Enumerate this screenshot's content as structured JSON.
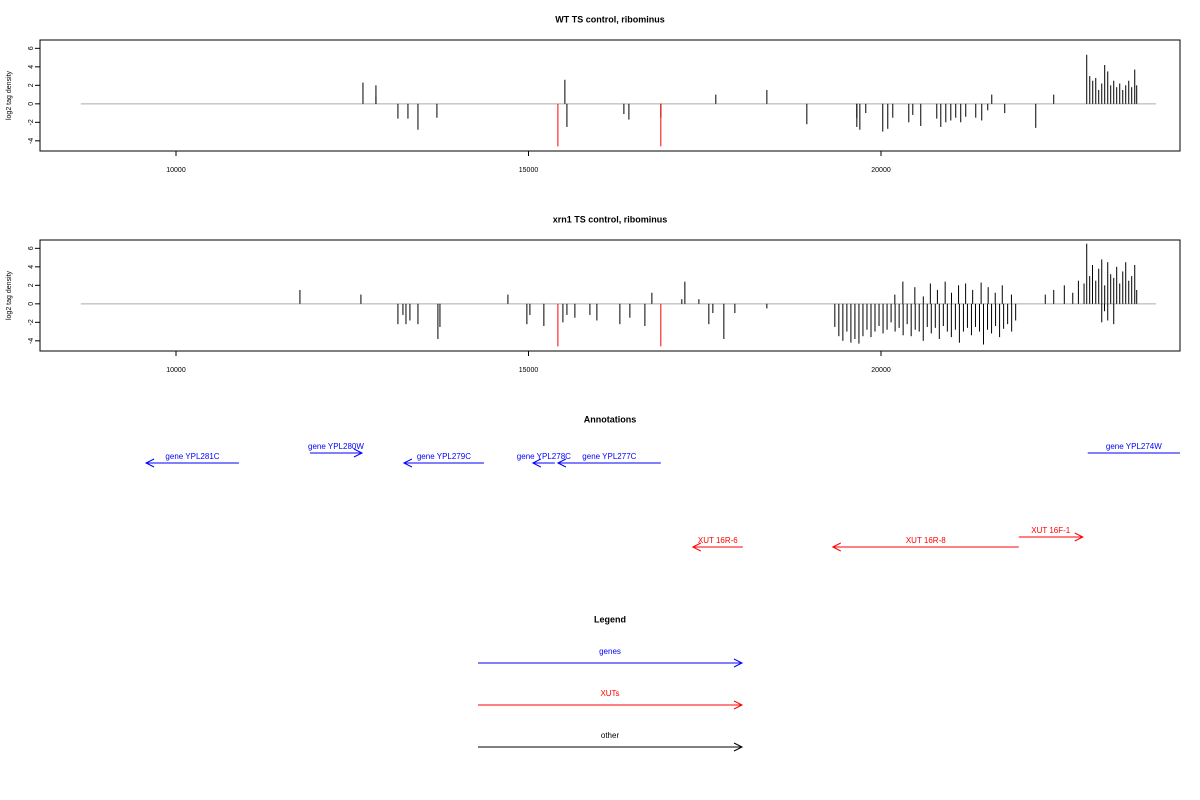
{
  "chart_data": [
    {
      "type": "spike",
      "title": "WT TS control, ribominus",
      "y_label": "log2 tag density",
      "xlim": [
        8071,
        24241
      ],
      "ylim": [
        -5.1,
        6.9
      ],
      "xticks": [
        10000,
        15000,
        20000
      ],
      "yticks": [
        -4,
        -2,
        0,
        2,
        4,
        6
      ],
      "baseline_x": [
        8650,
        23900
      ],
      "series": [
        {
          "color": "#000000",
          "x": [
            12652,
            12836,
            12836,
            13148,
            13290,
            13432,
            13701,
            15516,
            15545,
            16353,
            16424,
            16877,
            17657,
            18381,
            18948,
            19657,
            19657,
            19700,
            19784,
            20025,
            20096,
            20167,
            20394,
            20451,
            20564,
            20791,
            20848,
            20919,
            20990,
            21060,
            21131,
            21202,
            21344,
            21429,
            21514,
            21571,
            21755,
            22195,
            22450,
            22918,
            22961,
            23003,
            23046,
            23088,
            23131,
            23173,
            23216,
            23258,
            23301,
            23343,
            23386,
            23429,
            23471,
            23514,
            23556,
            23599,
            23627
          ],
          "values": [
            2.3,
            2.0,
            0.8,
            -1.6,
            -1.6,
            -2.8,
            -1.5,
            2.6,
            -2.5,
            -1.1,
            -1.7,
            -1.5,
            1.0,
            1.5,
            -2.2,
            -1.5,
            -2.5,
            -2.8,
            -1.0,
            -3.0,
            -2.7,
            -1.5,
            -2.0,
            -1.2,
            -2.4,
            -1.6,
            -2.5,
            -2.0,
            -1.8,
            -1.5,
            -2.0,
            -1.4,
            -1.5,
            -1.8,
            -0.7,
            1.0,
            -1.0,
            -2.6,
            1.0,
            5.3,
            3.0,
            2.5,
            2.8,
            1.5,
            2.2,
            4.2,
            3.5,
            2.0,
            2.5,
            1.8,
            2.2,
            1.5,
            2.0,
            2.5,
            1.8,
            3.7,
            2.0
          ]
        },
        {
          "color": "#ff0000",
          "x": [
            15417,
            16877
          ],
          "values": [
            -4.6,
            -4.6
          ]
        }
      ]
    },
    {
      "type": "spike",
      "title": "xrn1 TS control, ribominus",
      "y_label": "log2 tag density",
      "xlim": [
        8071,
        24241
      ],
      "ylim": [
        -5.1,
        6.9
      ],
      "xticks": [
        10000,
        15000,
        20000
      ],
      "yticks": [
        -4,
        -2,
        0,
        2,
        4,
        6
      ],
      "baseline_x": [
        8650,
        23900
      ],
      "series": [
        {
          "color": "#000000",
          "x": [
            11758,
            12623,
            14708,
            16750,
            17175,
            17218,
            17417,
            13148,
            13219,
            13262,
            13318,
            13432,
            13715,
            13744,
            14977,
            15020,
            15218,
            15488,
            15545,
            15658,
            15871,
            15970,
            16296,
            16438,
            16651,
            17558,
            17615,
            17771,
            17927,
            18381,
            19345,
            19402,
            19459,
            19516,
            19573,
            19630,
            19687,
            19744,
            19801,
            19858,
            19915,
            19972,
            20029,
            20086,
            20143,
            20200,
            20257,
            20314,
            20371,
            20428,
            20485,
            20542,
            20599,
            20656,
            20713,
            20770,
            20827,
            20884,
            20941,
            20998,
            21055,
            21112,
            21169,
            21226,
            21283,
            21340,
            21397,
            21454,
            21511,
            21568,
            21625,
            21682,
            21739,
            21796,
            21853,
            21910,
            20196,
            20310,
            20480,
            20600,
            20700,
            20800,
            20910,
            21000,
            21100,
            21200,
            21300,
            21420,
            21520,
            21620,
            21720,
            21850,
            22330,
            22450,
            22600,
            22720,
            22800,
            22880,
            22918,
            22960,
            23000,
            23046,
            23088,
            23131,
            23173,
            23216,
            23258,
            23301,
            23343,
            23386,
            23429,
            23471,
            23514,
            23556,
            23599,
            23627,
            23131,
            23216,
            23301,
            23170
          ],
          "values": [
            1.5,
            1.0,
            1.0,
            1.2,
            0.5,
            2.4,
            0.5,
            -2.2,
            -1.2,
            -2.2,
            -1.8,
            -2.2,
            -3.8,
            -2.5,
            -2.2,
            -1.2,
            -2.4,
            -2.0,
            -1.2,
            -1.5,
            -1.2,
            -1.8,
            -2.2,
            -1.5,
            -2.4,
            -2.2,
            -1.0,
            -3.8,
            -1.0,
            -0.5,
            -2.5,
            -3.5,
            -4.0,
            -3.0,
            -4.2,
            -3.8,
            -4.3,
            -3.5,
            -2.8,
            -3.6,
            -3.0,
            -2.4,
            -3.2,
            -2.8,
            -2.0,
            -3.0,
            -2.6,
            -3.4,
            -2.2,
            -3.5,
            -2.8,
            -3.0,
            -4.0,
            -2.5,
            -3.2,
            -2.6,
            -3.8,
            -2.4,
            -3.0,
            -3.6,
            -2.8,
            -4.2,
            -3.0,
            -2.6,
            -3.4,
            -2.5,
            -3.0,
            -4.4,
            -2.8,
            -3.2,
            -2.4,
            -3.6,
            -2.7,
            -2.2,
            -3.0,
            -1.8,
            1.0,
            2.4,
            1.8,
            0.8,
            2.2,
            1.5,
            2.4,
            1.2,
            2.0,
            2.2,
            1.5,
            2.3,
            1.8,
            1.2,
            2.0,
            1.0,
            1.0,
            1.5,
            2.0,
            1.2,
            2.5,
            2.2,
            6.5,
            3.0,
            4.2,
            2.5,
            3.8,
            4.8,
            2.0,
            4.5,
            3.2,
            2.8,
            4.0,
            2.2,
            3.5,
            4.5,
            2.5,
            3.0,
            4.2,
            1.5,
            -2.0,
            -1.8,
            -2.2,
            -0.8
          ]
        },
        {
          "color": "#ff0000",
          "x": [
            15417,
            16877
          ],
          "values": [
            -4.6,
            -4.6
          ]
        }
      ]
    }
  ],
  "annotations": {
    "title": "Annotations",
    "xlim": [
      8071,
      24241
    ],
    "features": [
      {
        "label": "gene YPL281C",
        "start": 10893,
        "end": 9575,
        "color": "#0000ff"
      },
      {
        "label": "gene YPL280W",
        "start": 11900,
        "end": 12638,
        "color": "#0000ff"
      },
      {
        "label": "gene YPL279C",
        "start": 14368,
        "end": 13233,
        "color": "#0000ff"
      },
      {
        "label": "gene YPL278C",
        "start": 15374,
        "end": 15062,
        "color": "#0000ff"
      },
      {
        "label": "gene YPL277C",
        "start": 16877,
        "end": 15417,
        "color": "#0000ff"
      },
      {
        "label": "gene YPL274W",
        "start": 22932,
        "end": 24400,
        "color": "#0000ff"
      },
      {
        "label": "XUT 16R-6",
        "start": 18040,
        "end": 17331,
        "color": "#ff0000"
      },
      {
        "label": "XUT 16R-8",
        "start": 21954,
        "end": 19316,
        "color": "#ff0000"
      },
      {
        "label": "XUT 16F-1",
        "start": 21954,
        "end": 22862,
        "color": "#ff0000"
      }
    ]
  },
  "legend": {
    "title": "Legend",
    "items": [
      {
        "label": "genes",
        "color": "#0000ff"
      },
      {
        "label": "XUTs",
        "color": "#ff0000"
      },
      {
        "label": "other",
        "color": "#000000"
      }
    ]
  }
}
